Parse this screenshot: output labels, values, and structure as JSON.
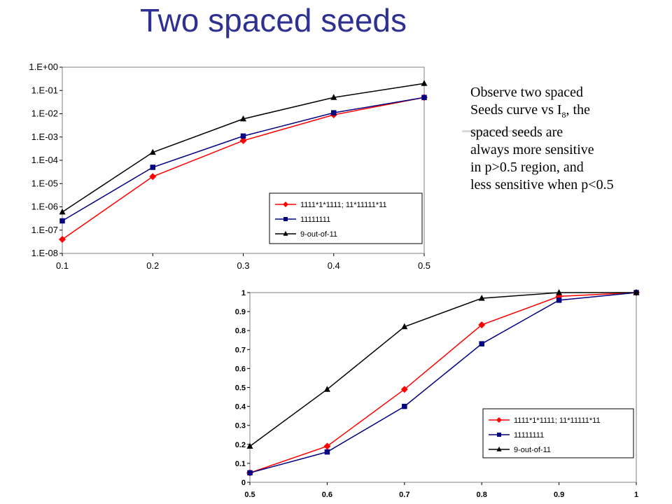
{
  "title": "Two spaced seeds",
  "note": {
    "line1": "Observe two spaced",
    "line2_pre": "Seeds curve vs I",
    "line2_sub": "8",
    "line2_post": ", the",
    "line3": "spaced seeds are",
    "line4": "always more sensitive",
    "line5": "in p>0.5 region, and",
    "line6": "less sensitive when p<0.5"
  },
  "colors": {
    "title": "#2e3191",
    "series_red": "#ff0000",
    "series_blue": "#000080",
    "series_black": "#000000"
  },
  "chart_data": [
    {
      "type": "line",
      "x": [
        0.1,
        0.2,
        0.3,
        0.4,
        0.5
      ],
      "xlim": [
        0.1,
        0.5
      ],
      "yscale": "log",
      "ylim": [
        1e-08,
        1
      ],
      "x_ticks": [
        "0.1",
        "0.2",
        "0.3",
        "0.4",
        "0.5"
      ],
      "y_ticks": [
        "1.E-08",
        "1.E-07",
        "1.E-06",
        "1.E-05",
        "1.E-04",
        "1.E-03",
        "1.E-02",
        "1.E-01",
        "1.E+00"
      ],
      "legend_position": "bottom-right",
      "series": [
        {
          "name": "1111*1*1111; 11*11111*11",
          "color": "#ff0000",
          "marker": "diamond",
          "values": [
            4e-08,
            2e-05,
            0.0007,
            0.009,
            0.05
          ]
        },
        {
          "name": "11111111",
          "color": "#000080",
          "marker": "square",
          "values": [
            2.5e-07,
            5e-05,
            0.0011,
            0.011,
            0.05
          ]
        },
        {
          "name": "9-out-of-11",
          "color": "#000000",
          "marker": "triangle",
          "values": [
            6e-07,
            0.00022,
            0.006,
            0.05,
            0.2
          ]
        }
      ]
    },
    {
      "type": "line",
      "x": [
        0.5,
        0.6,
        0.7,
        0.8,
        0.9,
        1.0
      ],
      "xlim": [
        0.5,
        1.0
      ],
      "ylim": [
        0,
        1
      ],
      "x_ticks": [
        "0.5",
        "0.6",
        "0.7",
        "0.8",
        "0.9",
        "1"
      ],
      "y_ticks": [
        "0",
        "0.1",
        "0.2",
        "0.3",
        "0.4",
        "0.5",
        "0.6",
        "0.7",
        "0.8",
        "0.9",
        "1"
      ],
      "legend_position": "bottom-right",
      "series": [
        {
          "name": "1111*1*1111; 11*11111*11",
          "color": "#ff0000",
          "marker": "diamond",
          "values": [
            0.05,
            0.19,
            0.49,
            0.83,
            0.98,
            1.0
          ]
        },
        {
          "name": "11111111",
          "color": "#000080",
          "marker": "square",
          "values": [
            0.05,
            0.16,
            0.4,
            0.73,
            0.96,
            1.0
          ]
        },
        {
          "name": "9-out-of-11",
          "color": "#000000",
          "marker": "triangle",
          "values": [
            0.19,
            0.49,
            0.82,
            0.97,
            1.0,
            1.0
          ]
        }
      ]
    }
  ]
}
